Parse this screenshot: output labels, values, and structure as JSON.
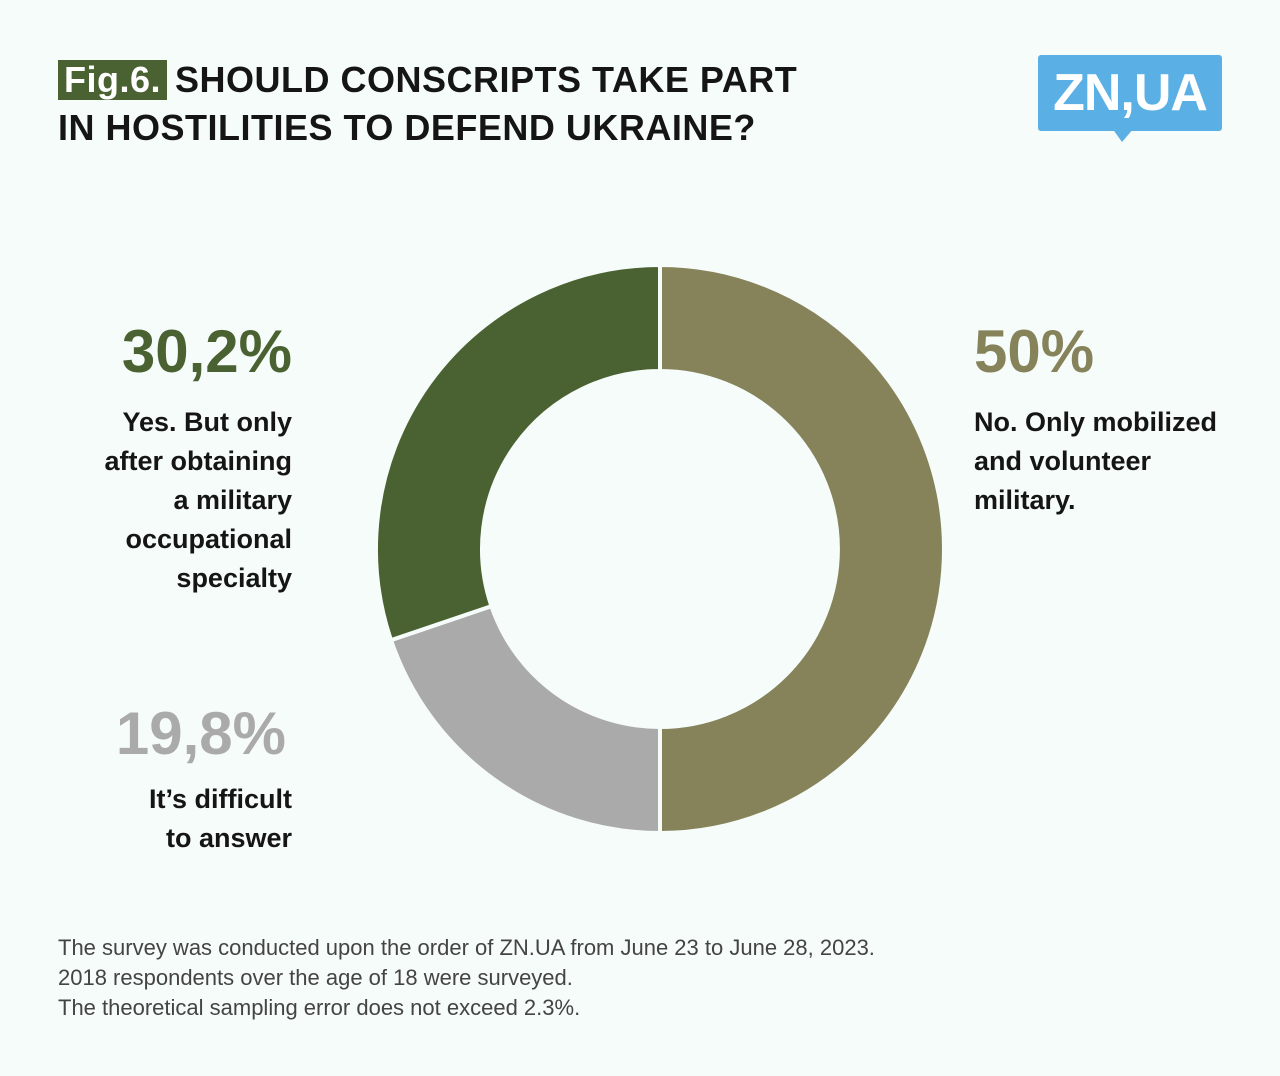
{
  "header": {
    "fig_label": "Fig.6.",
    "title_line1": "SHOULD CONSCRIPTS TAKE PART",
    "title_line2": "IN HOSTILITIES TO DEFEND UKRAINE?"
  },
  "logo": {
    "text": "ZN,UA",
    "color": "#5aafe4"
  },
  "chart_data": {
    "type": "pie",
    "variant": "donut",
    "title": "SHOULD CONSCRIPTS TAKE PART IN HOSTILITIES TO DEFEND UKRAINE?",
    "slices": [
      {
        "label": "No. Only mobilized and volunteer military.",
        "value": 50,
        "value_label": "50%",
        "color": "#86835b"
      },
      {
        "label": "It’s difficult to answer",
        "value": 19.8,
        "value_label": "19,8%",
        "color": "#aaaaaa"
      },
      {
        "label": "Yes. But only after obtaining a military occupational specialty",
        "value": 30.2,
        "value_label": "30,2%",
        "color": "#4a6232"
      }
    ]
  },
  "labels": {
    "no": {
      "pct": "50%",
      "lines": [
        "No. Only mobilized",
        "and volunteer",
        "military."
      ]
    },
    "yes": {
      "pct": "30,2%",
      "lines": [
        "Yes. But only",
        "after obtaining",
        "a military",
        "occupational",
        "specialty"
      ]
    },
    "difficult": {
      "pct": "19,8%",
      "lines": [
        "It’s difficult",
        "to answer"
      ]
    }
  },
  "footnote": {
    "lines": [
      "The survey was conducted upon the order of ZN.UA from June 23 to June 28, 2023.",
      "2018 respondents over the age of 18 were surveyed.",
      "The theoretical sampling error does not exceed 2.3%."
    ]
  }
}
